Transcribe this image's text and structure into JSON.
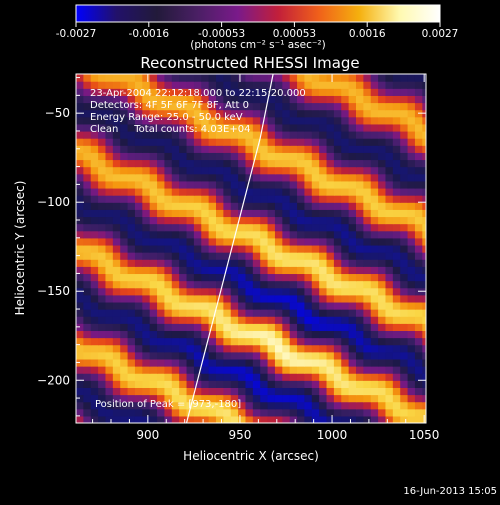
{
  "colorbar": {
    "ticks": [
      "-0.0027",
      "-0.0016",
      "-0.00053",
      "0.00053",
      "0.0016",
      "0.0027"
    ],
    "unit_label": "(photons cm⁻² s⁻¹ asec⁻²)",
    "stops": [
      "#0000ff",
      "#22116a",
      "#221a3a",
      "#4a1f64",
      "#7a1a8a",
      "#c21f3a",
      "#f0601a",
      "#f5b00e",
      "#fff9b0",
      "#ffffff"
    ]
  },
  "title": "Reconstructed RHESSI Image",
  "annotations": {
    "line1": "23-Apr-2004 22:12:18.000 to 22:15:20.000",
    "line2": "Detectors: 4F 5F 6F 7F 8F, Att 0",
    "line3": "Energy Range: 25.0 - 50.0 keV",
    "line4": "Clean     Total counts: 4.03E+04",
    "peak": "Position of Peak = [973,-180]"
  },
  "footer": {
    "date": "16-Jun-2013 15:05"
  },
  "chart_data": {
    "type": "heatmap",
    "title": "Reconstructed RHESSI Image",
    "xlabel": "Heliocentric X (arcsec)",
    "ylabel": "Heliocentric Y (arcsec)",
    "xlim": [
      861,
      1051
    ],
    "ylim": [
      -224,
      -28
    ],
    "x_ticks": [
      900,
      950,
      1000,
      1050
    ],
    "y_ticks": [
      -200,
      -150,
      -100,
      -50
    ],
    "x_tick_labels": [
      "900",
      "950",
      "1000",
      "1050"
    ],
    "y_tick_labels": [
      "−200",
      "−150",
      "−100",
      "−50"
    ],
    "value_range": [
      -0.0027,
      0.0027
    ],
    "peak": [
      973,
      -180
    ],
    "limb_points": [
      [
        921,
        -224
      ],
      [
        931,
        -184
      ],
      [
        941,
        -144
      ],
      [
        951,
        -104
      ],
      [
        961,
        -64
      ],
      [
        968,
        -28
      ]
    ]
  }
}
